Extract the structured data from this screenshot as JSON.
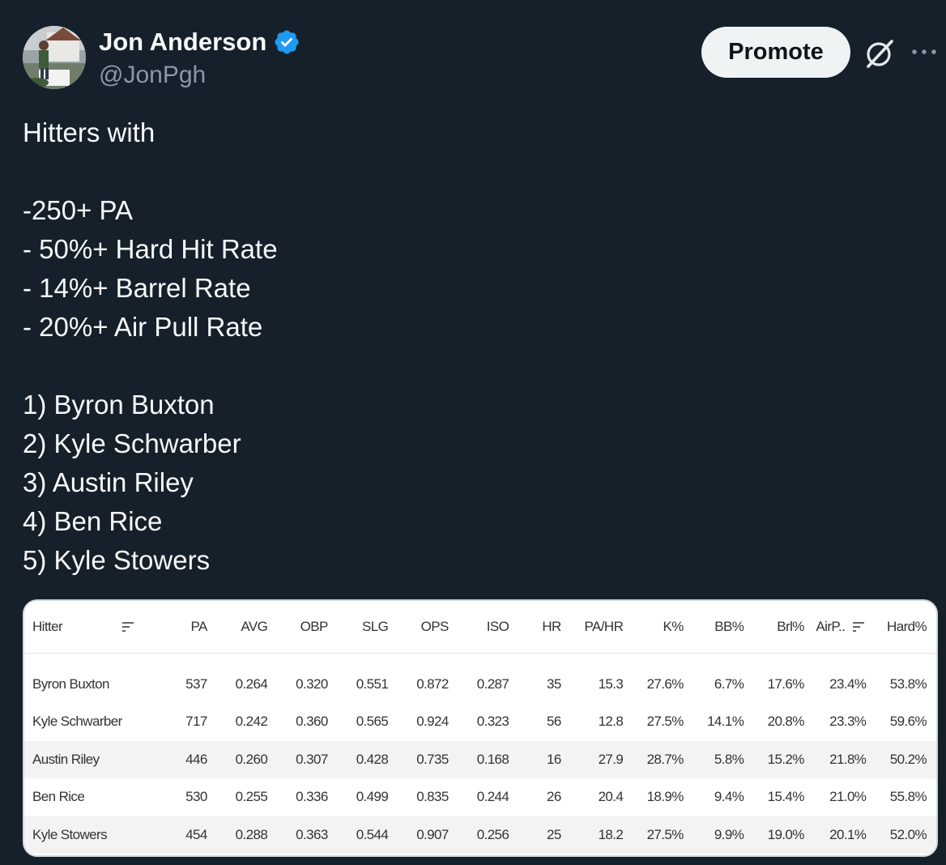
{
  "author": {
    "display_name": "Jon Anderson",
    "handle": "@JonPgh",
    "verified": true
  },
  "actions": {
    "promote_label": "Promote",
    "grok_icon": "grok-icon",
    "more_icon": "more-icon"
  },
  "tweet": {
    "lines": [
      "Hitters with",
      "",
      "-250+ PA",
      "- 50%+ Hard Hit Rate",
      "- 14%+ Barrel Rate",
      "- 20%+ Air Pull Rate",
      "",
      "1) Byron Buxton",
      "2) Kyle Schwarber",
      "3) Austin Riley",
      "4) Ben Rice",
      "5) Kyle Stowers"
    ]
  },
  "table": {
    "columns": [
      "Hitter",
      "PA",
      "AVG",
      "OBP",
      "SLG",
      "OPS",
      "ISO",
      "HR",
      "PA/HR",
      "K%",
      "BB%",
      "Brl%",
      "AirP..",
      "Hard%"
    ],
    "rows": [
      [
        "Byron Buxton",
        "537",
        "0.264",
        "0.320",
        "0.551",
        "0.872",
        "0.287",
        "35",
        "15.3",
        "27.6%",
        "6.7%",
        "17.6%",
        "23.4%",
        "53.8%"
      ],
      [
        "Kyle Schwarber",
        "717",
        "0.242",
        "0.360",
        "0.565",
        "0.924",
        "0.323",
        "56",
        "12.8",
        "27.5%",
        "14.1%",
        "20.8%",
        "23.3%",
        "59.6%"
      ],
      [
        "Austin Riley",
        "446",
        "0.260",
        "0.307",
        "0.428",
        "0.735",
        "0.168",
        "16",
        "27.9",
        "28.7%",
        "5.8%",
        "15.2%",
        "21.8%",
        "50.2%"
      ],
      [
        "Ben Rice",
        "530",
        "0.255",
        "0.336",
        "0.499",
        "0.835",
        "0.244",
        "26",
        "20.4",
        "18.9%",
        "9.4%",
        "15.4%",
        "21.0%",
        "55.8%"
      ],
      [
        "Kyle Stowers",
        "454",
        "0.288",
        "0.363",
        "0.544",
        "0.907",
        "0.256",
        "25",
        "18.2",
        "27.5%",
        "9.9%",
        "19.0%",
        "20.1%",
        "52.0%"
      ]
    ]
  },
  "colors": {
    "background": "#15202b",
    "text": "#f7f9f9",
    "secondary_text": "#8b98a5",
    "verified_blue": "#1d9bf0",
    "promote_bg": "#eff3f4"
  }
}
